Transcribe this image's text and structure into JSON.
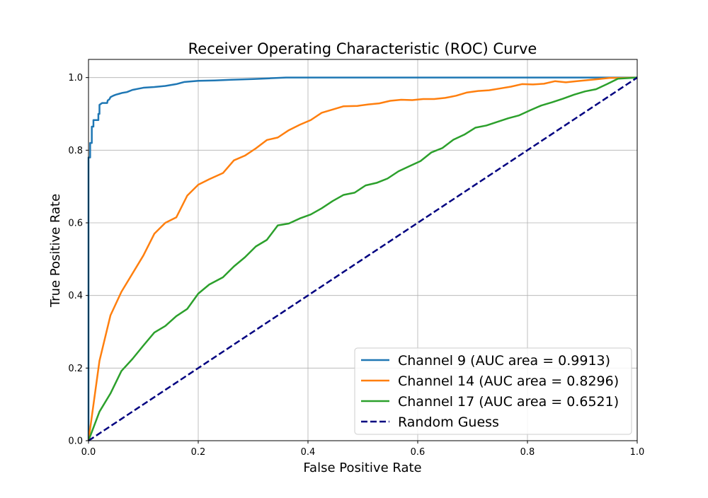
{
  "chart_data": {
    "type": "line",
    "title": "Receiver Operating Characteristic (ROC) Curve",
    "xlabel": "False Positive Rate",
    "ylabel": "True Positive Rate",
    "xlim": [
      0,
      1
    ],
    "ylim": [
      0,
      1.05
    ],
    "x_ticks": [
      0.0,
      0.2,
      0.4,
      0.6,
      0.8,
      1.0
    ],
    "x_tick_labels": [
      "0.0",
      "0.2",
      "0.4",
      "0.6",
      "0.8",
      "1.0"
    ],
    "y_ticks": [
      0.0,
      0.2,
      0.4,
      0.6,
      0.8,
      1.0
    ],
    "y_tick_labels": [
      "0.0",
      "0.2",
      "0.4",
      "0.6",
      "0.8",
      "1.0"
    ],
    "grid": true,
    "legend_position": "bottom-right",
    "series": [
      {
        "name": "Channel 9 (AUC area = 0.9913)",
        "color": "#1f77b4",
        "style": "solid",
        "points": [
          [
            0.0,
            0.0
          ],
          [
            0.0,
            0.78
          ],
          [
            0.003,
            0.78
          ],
          [
            0.003,
            0.82
          ],
          [
            0.006,
            0.82
          ],
          [
            0.006,
            0.865
          ],
          [
            0.009,
            0.865
          ],
          [
            0.009,
            0.883
          ],
          [
            0.018,
            0.883
          ],
          [
            0.018,
            0.9
          ],
          [
            0.02,
            0.9
          ],
          [
            0.02,
            0.925
          ],
          [
            0.025,
            0.93
          ],
          [
            0.034,
            0.93
          ],
          [
            0.035,
            0.937
          ],
          [
            0.038,
            0.94
          ],
          [
            0.04,
            0.946
          ],
          [
            0.045,
            0.95
          ],
          [
            0.05,
            0.953
          ],
          [
            0.055,
            0.955
          ],
          [
            0.062,
            0.958
          ],
          [
            0.07,
            0.96
          ],
          [
            0.08,
            0.966
          ],
          [
            0.09,
            0.969
          ],
          [
            0.1,
            0.972
          ],
          [
            0.12,
            0.974
          ],
          [
            0.14,
            0.977
          ],
          [
            0.16,
            0.982
          ],
          [
            0.175,
            0.988
          ],
          [
            0.2,
            0.991
          ],
          [
            0.23,
            0.992
          ],
          [
            0.26,
            0.994
          ],
          [
            0.3,
            0.996
          ],
          [
            0.33,
            0.998
          ],
          [
            0.36,
            1.0
          ],
          [
            0.6,
            1.0
          ],
          [
            1.0,
            1.0
          ]
        ]
      },
      {
        "name": "Channel 14 (AUC area = 0.8296)",
        "color": "#ff7f0e",
        "style": "solid",
        "points": [
          [
            0.0,
            0.0
          ],
          [
            0.02,
            0.22
          ],
          [
            0.04,
            0.345
          ],
          [
            0.06,
            0.41
          ],
          [
            0.08,
            0.46
          ],
          [
            0.1,
            0.51
          ],
          [
            0.12,
            0.57
          ],
          [
            0.14,
            0.6
          ],
          [
            0.16,
            0.615
          ],
          [
            0.18,
            0.675
          ],
          [
            0.2,
            0.705
          ],
          [
            0.22,
            0.72
          ],
          [
            0.245,
            0.737
          ],
          [
            0.265,
            0.772
          ],
          [
            0.285,
            0.785
          ],
          [
            0.305,
            0.805
          ],
          [
            0.325,
            0.828
          ],
          [
            0.345,
            0.835
          ],
          [
            0.365,
            0.855
          ],
          [
            0.385,
            0.87
          ],
          [
            0.405,
            0.883
          ],
          [
            0.425,
            0.903
          ],
          [
            0.445,
            0.912
          ],
          [
            0.465,
            0.921
          ],
          [
            0.49,
            0.922
          ],
          [
            0.51,
            0.926
          ],
          [
            0.53,
            0.929
          ],
          [
            0.55,
            0.936
          ],
          [
            0.57,
            0.939
          ],
          [
            0.59,
            0.938
          ],
          [
            0.61,
            0.941
          ],
          [
            0.63,
            0.941
          ],
          [
            0.65,
            0.944
          ],
          [
            0.67,
            0.95
          ],
          [
            0.69,
            0.959
          ],
          [
            0.71,
            0.963
          ],
          [
            0.73,
            0.965
          ],
          [
            0.75,
            0.97
          ],
          [
            0.77,
            0.975
          ],
          [
            0.79,
            0.982
          ],
          [
            0.81,
            0.981
          ],
          [
            0.83,
            0.983
          ],
          [
            0.85,
            0.99
          ],
          [
            0.87,
            0.987
          ],
          [
            0.89,
            0.99
          ],
          [
            0.91,
            0.993
          ],
          [
            0.93,
            0.996
          ],
          [
            0.95,
            0.999
          ],
          [
            0.97,
            0.999
          ],
          [
            1.0,
            1.0
          ]
        ]
      },
      {
        "name": "Channel 17 (AUC area = 0.6521)",
        "color": "#2ca02c",
        "style": "solid",
        "points": [
          [
            0.0,
            0.0
          ],
          [
            0.02,
            0.08
          ],
          [
            0.04,
            0.13
          ],
          [
            0.06,
            0.192
          ],
          [
            0.08,
            0.225
          ],
          [
            0.1,
            0.262
          ],
          [
            0.12,
            0.298
          ],
          [
            0.14,
            0.316
          ],
          [
            0.16,
            0.343
          ],
          [
            0.18,
            0.363
          ],
          [
            0.2,
            0.405
          ],
          [
            0.22,
            0.43
          ],
          [
            0.245,
            0.45
          ],
          [
            0.265,
            0.48
          ],
          [
            0.285,
            0.505
          ],
          [
            0.305,
            0.535
          ],
          [
            0.325,
            0.553
          ],
          [
            0.345,
            0.593
          ],
          [
            0.365,
            0.598
          ],
          [
            0.385,
            0.612
          ],
          [
            0.405,
            0.623
          ],
          [
            0.425,
            0.64
          ],
          [
            0.445,
            0.66
          ],
          [
            0.465,
            0.677
          ],
          [
            0.485,
            0.683
          ],
          [
            0.505,
            0.703
          ],
          [
            0.525,
            0.71
          ],
          [
            0.545,
            0.722
          ],
          [
            0.565,
            0.742
          ],
          [
            0.585,
            0.756
          ],
          [
            0.605,
            0.77
          ],
          [
            0.625,
            0.794
          ],
          [
            0.645,
            0.806
          ],
          [
            0.665,
            0.829
          ],
          [
            0.685,
            0.843
          ],
          [
            0.705,
            0.862
          ],
          [
            0.725,
            0.868
          ],
          [
            0.745,
            0.878
          ],
          [
            0.765,
            0.888
          ],
          [
            0.785,
            0.896
          ],
          [
            0.805,
            0.91
          ],
          [
            0.825,
            0.923
          ],
          [
            0.845,
            0.932
          ],
          [
            0.865,
            0.942
          ],
          [
            0.885,
            0.953
          ],
          [
            0.905,
            0.962
          ],
          [
            0.925,
            0.968
          ],
          [
            0.945,
            0.982
          ],
          [
            0.965,
            0.997
          ],
          [
            1.0,
            1.0
          ]
        ]
      },
      {
        "name": "Random Guess",
        "color": "#000080",
        "style": "dashed",
        "points": [
          [
            0.0,
            0.0
          ],
          [
            1.0,
            1.0
          ]
        ]
      }
    ]
  }
}
